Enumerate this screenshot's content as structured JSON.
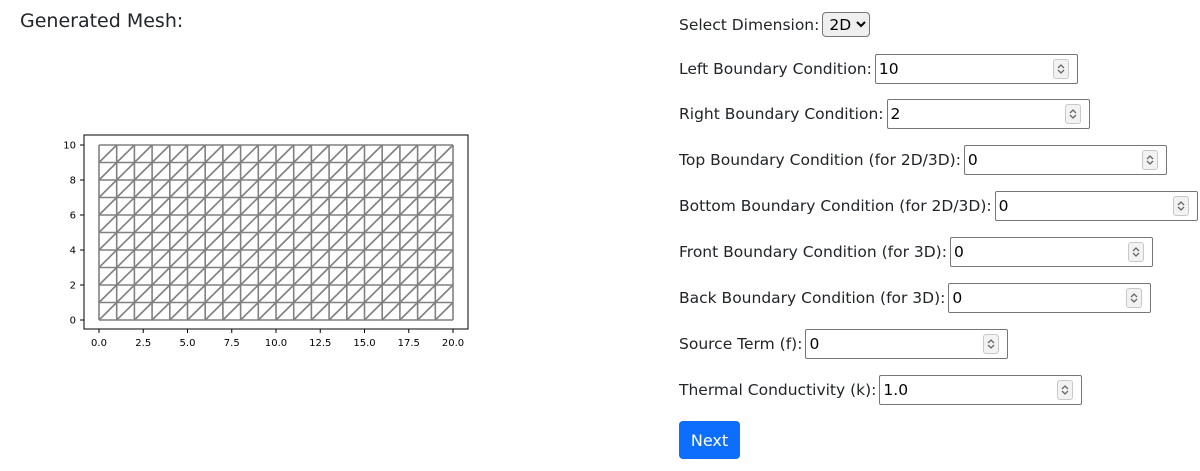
{
  "heading": "Generated Mesh:",
  "chart_data": {
    "type": "mesh",
    "x_range": [
      0,
      20
    ],
    "y_range": [
      0,
      10
    ],
    "nx": 20,
    "ny": 10,
    "xticks": [
      0.0,
      2.5,
      5.0,
      7.5,
      10.0,
      12.5,
      15.0,
      17.5,
      20.0
    ],
    "xtick_labels": [
      "0.0",
      "2.5",
      "5.0",
      "7.5",
      "10.0",
      "12.5",
      "15.0",
      "17.5",
      "20.0"
    ],
    "yticks": [
      0,
      2,
      4,
      6,
      8,
      10
    ],
    "ytick_labels": [
      "0",
      "2",
      "4",
      "6",
      "8",
      "10"
    ],
    "mesh_color": "#808080"
  },
  "form": {
    "dimension": {
      "label": "Select Dimension:",
      "value": "2D"
    },
    "fields": [
      {
        "name": "left-boundary-field",
        "label": "Left Boundary Condition:",
        "value": "10"
      },
      {
        "name": "right-boundary-field",
        "label": "Right Boundary Condition:",
        "value": "2"
      },
      {
        "name": "top-boundary-field",
        "label": "Top Boundary Condition (for 2D/3D):",
        "value": "0"
      },
      {
        "name": "bottom-boundary-field",
        "label": "Bottom Boundary Condition (for 2D/3D):",
        "value": "0"
      },
      {
        "name": "front-boundary-field",
        "label": "Front Boundary Condition (for 3D):",
        "value": "0"
      },
      {
        "name": "back-boundary-field",
        "label": "Back Boundary Condition (for 3D):",
        "value": "0"
      },
      {
        "name": "source-term-field",
        "label": "Source Term (f):",
        "value": "0"
      },
      {
        "name": "thermal-conductivity-field",
        "label": "Thermal Conductivity (k):",
        "value": "1.0"
      }
    ],
    "next_label": "Next",
    "button_color": "#0d6efd"
  }
}
